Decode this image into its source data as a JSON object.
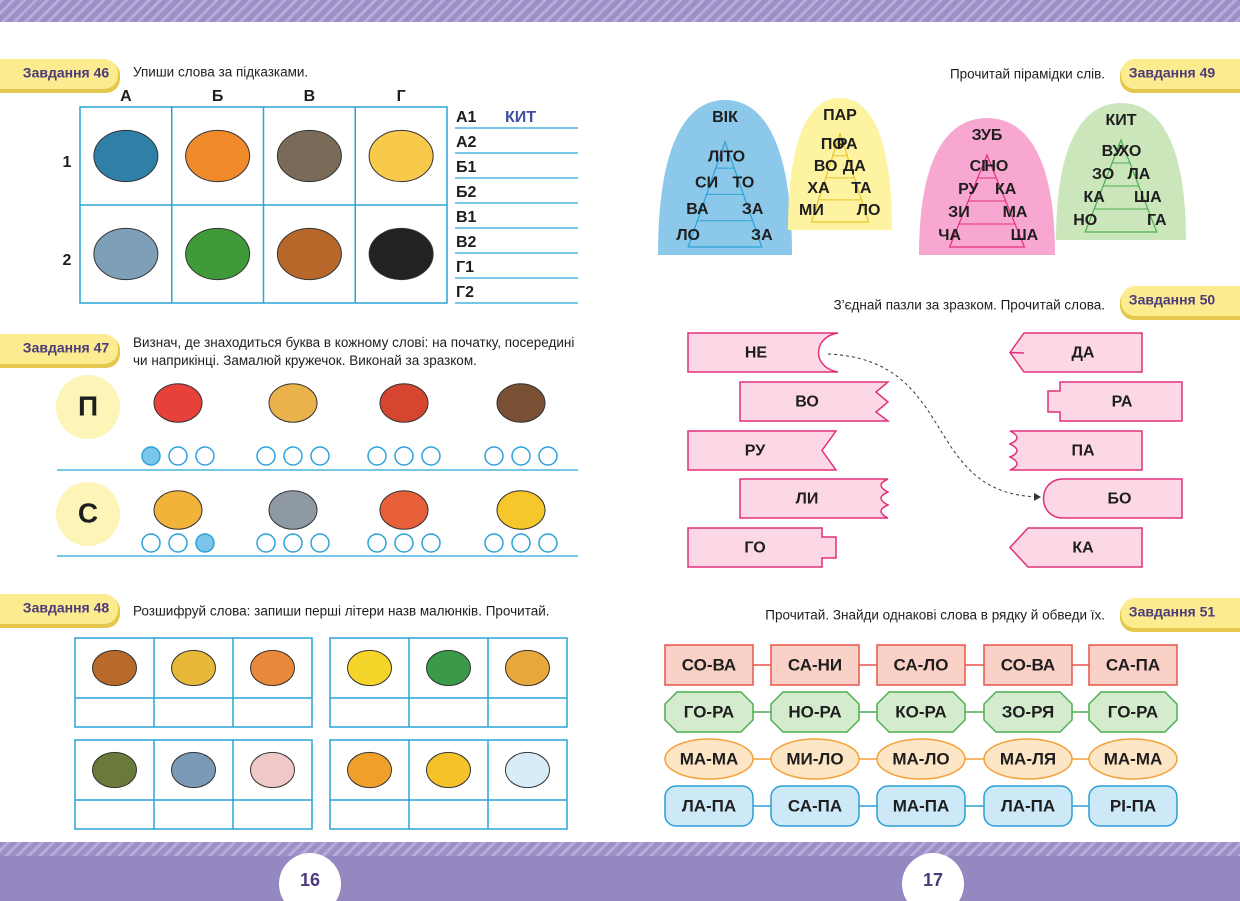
{
  "pages": [
    "16",
    "17"
  ],
  "task46": {
    "label": "Завдання 46",
    "instruction": "Упиши слова за підказками.",
    "columns": [
      "А",
      "Б",
      "В",
      "Г"
    ],
    "rows": [
      "1",
      "2"
    ],
    "answers": [
      "А1",
      "А2",
      "Б1",
      "Б2",
      "В1",
      "В2",
      "Г1",
      "Г2"
    ],
    "example": "КИТ"
  },
  "task47": {
    "label": "Завдання 47",
    "instruction": "Визнач, де знаходиться буква в кожному слові: на початку, посередині чи наприкінці. Замалюй кружечок. Виконай за зразком.",
    "letters": [
      "П",
      "С"
    ]
  },
  "task48": {
    "label": "Завдання 48",
    "instruction": "Розшифруй слова: запиши перші літери назв малюнків. Прочитай."
  },
  "task49": {
    "label": "Завдання 49",
    "instruction": "Прочитай пірамідки слів.",
    "pyramids": [
      {
        "top": "ВІК",
        "rows": [
          [
            "ЛІ",
            "ТО"
          ],
          [
            "СИ",
            "ТО"
          ],
          [
            "ВА",
            "ЗА"
          ],
          [
            "ЛО",
            "ЗА"
          ]
        ]
      },
      {
        "top": "ПАР",
        "rows": [
          [
            "ПО",
            "РА"
          ],
          [
            "ВО",
            "ДА"
          ],
          [
            "ХА",
            "ТА"
          ],
          [
            "МИ",
            "ЛО"
          ]
        ]
      },
      {
        "top": "ЗУБ",
        "rows": [
          [
            "СІ",
            "НО"
          ],
          [
            "РУ",
            "КА"
          ],
          [
            "ЗИ",
            "МА"
          ],
          [
            "ЧА",
            "ША"
          ]
        ]
      },
      {
        "top": "КИТ",
        "rows": [
          [
            "ВУ",
            "ХО"
          ],
          [
            "ЗО",
            "ЛА"
          ],
          [
            "КА",
            "ША"
          ],
          [
            "НО",
            "ГА"
          ]
        ]
      }
    ]
  },
  "task50": {
    "label": "Завдання 50",
    "instruction": "З’єднай пазли за зразком. Прочитай слова.",
    "left": [
      "НЕ",
      "ВО",
      "РУ",
      "ЛИ",
      "ГО"
    ],
    "right": [
      "ДА",
      "РА",
      "ПА",
      "БО",
      "КА"
    ]
  },
  "task51": {
    "label": "Завдання 51",
    "instruction": "Прочитай. Знайди однакові слова в рядку й обведи їх.",
    "rows": [
      [
        "СО-ВА",
        "СА-НИ",
        "СА-ЛО",
        "СО-ВА",
        "СА-ПА"
      ],
      [
        "ГО-РА",
        "НО-РА",
        "КО-РА",
        "ЗО-РЯ",
        "ГО-РА"
      ],
      [
        "МА-МА",
        "МИ-ЛО",
        "МА-ЛО",
        "МА-ЛЯ",
        "МА-МА"
      ],
      [
        "ЛА-ПА",
        "СА-ПА",
        "МА-ПА",
        "ЛА-ПА",
        "РІ-ПА"
      ]
    ]
  }
}
